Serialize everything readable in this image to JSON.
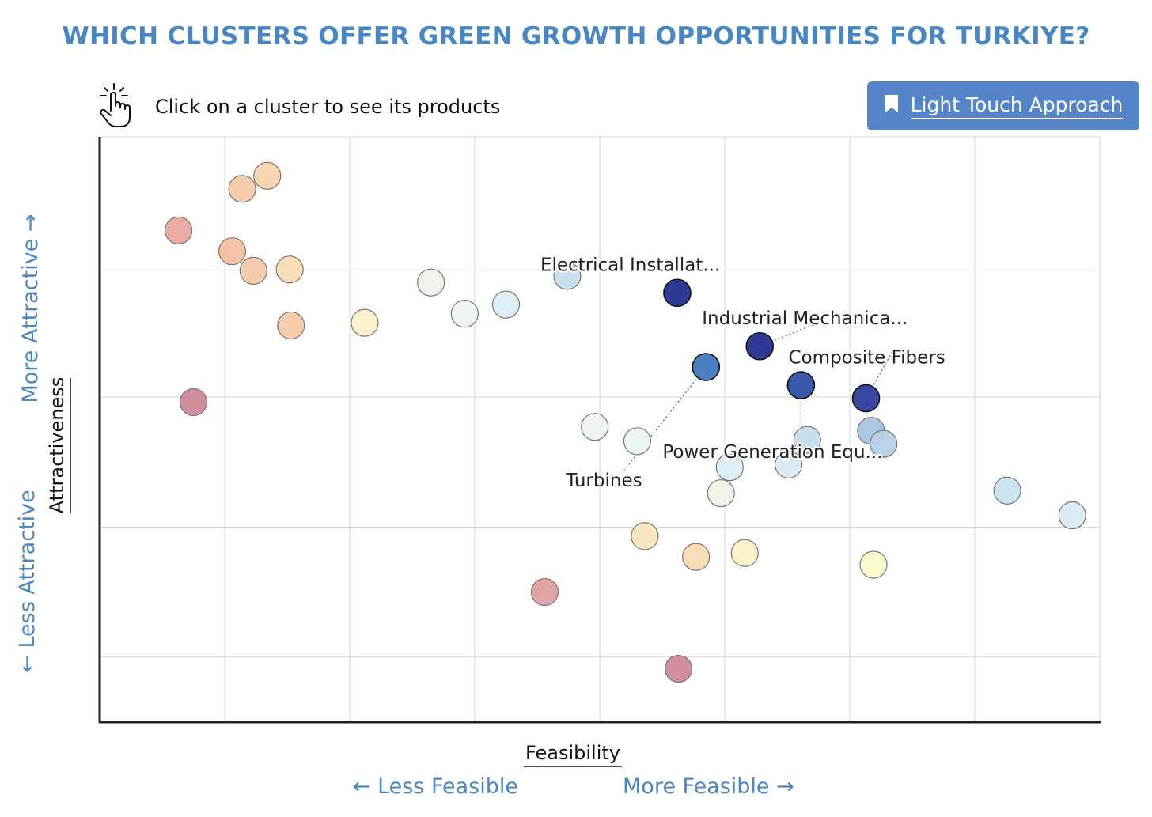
{
  "title": "WHICH CLUSTERS OFFER GREEN GROWTH OPPORTUNITIES FOR TURKIYE?",
  "hint": {
    "icon": "pointer-hand-click-icon",
    "text": "Click on a cluster to see its products"
  },
  "button": {
    "icon": "bookmark-icon",
    "label": "Light Touch Approach",
    "color": "#5585c8"
  },
  "chart_data": {
    "type": "scatter",
    "title": "WHICH CLUSTERS OFFER GREEN GROWTH OPPORTUNITIES FOR TURKIYE?",
    "xlabel": "Feasibility",
    "ylabel": "Attractiveness",
    "x_low_label": "← Less Feasible",
    "x_high_label": "More Feasible →",
    "y_low_label": "← Less Attractive",
    "y_high_label": "More Attractive →",
    "xlim": [
      0,
      8
    ],
    "ylim": [
      -0.5,
      4
    ],
    "grid": true,
    "points": [
      {
        "x": 1.34,
        "y": 3.7,
        "color": "#f6d3ac"
      },
      {
        "x": 1.14,
        "y": 3.6,
        "color": "#f5c8a6"
      },
      {
        "x": 0.63,
        "y": 3.28,
        "color": "#eaa69e"
      },
      {
        "x": 1.06,
        "y": 3.12,
        "color": "#f3bf9f"
      },
      {
        "x": 1.23,
        "y": 2.97,
        "color": "#f5c9a8"
      },
      {
        "x": 1.52,
        "y": 2.98,
        "color": "#f8dcb2"
      },
      {
        "x": 1.53,
        "y": 2.55,
        "color": "#f5cba7"
      },
      {
        "x": 2.12,
        "y": 2.57,
        "color": "#fcf0cc"
      },
      {
        "x": 2.65,
        "y": 2.88,
        "color": "#eef4ea"
      },
      {
        "x": 2.92,
        "y": 2.64,
        "color": "#eef4f0"
      },
      {
        "x": 3.25,
        "y": 2.71,
        "color": "#dceef4"
      },
      {
        "x": 3.74,
        "y": 2.93,
        "color": "#c4dcec"
      },
      {
        "x": 4.62,
        "y": 2.8,
        "color": "#2e3a94",
        "label": "Electrical Installat..."
      },
      {
        "x": 5.28,
        "y": 2.39,
        "color": "#2e3a94",
        "label": "Industrial Mechanica..."
      },
      {
        "x": 4.85,
        "y": 2.23,
        "color": "#4a80c0",
        "label": "Turbines"
      },
      {
        "x": 5.61,
        "y": 2.09,
        "color": "#3a58a8",
        "label": "Power Generation Equ..."
      },
      {
        "x": 6.13,
        "y": 1.99,
        "color": "#3a46a0",
        "label": "Composite Fibers"
      },
      {
        "x": 0.75,
        "y": 1.96,
        "color": "#d08898"
      },
      {
        "x": 3.96,
        "y": 1.77,
        "color": "#eef4ee"
      },
      {
        "x": 4.3,
        "y": 1.66,
        "color": "#eaf4f0"
      },
      {
        "x": 5.66,
        "y": 1.67,
        "color": "#c4dcec"
      },
      {
        "x": 6.17,
        "y": 1.74,
        "color": "#a8c4e0"
      },
      {
        "x": 6.27,
        "y": 1.64,
        "color": "#b8d0e8"
      },
      {
        "x": 5.04,
        "y": 1.46,
        "color": "#dceef4"
      },
      {
        "x": 5.51,
        "y": 1.48,
        "color": "#d8eaf4"
      },
      {
        "x": 4.97,
        "y": 1.26,
        "color": "#f0f4e6"
      },
      {
        "x": 7.26,
        "y": 1.28,
        "color": "#c8e0ee"
      },
      {
        "x": 7.78,
        "y": 1.09,
        "color": "#d8ecf4"
      },
      {
        "x": 4.36,
        "y": 0.93,
        "color": "#fae6bc"
      },
      {
        "x": 4.77,
        "y": 0.77,
        "color": "#f8dcb4"
      },
      {
        "x": 5.16,
        "y": 0.8,
        "color": "#fcf0c8"
      },
      {
        "x": 6.19,
        "y": 0.71,
        "color": "#fefacc"
      },
      {
        "x": 3.56,
        "y": 0.5,
        "color": "#e0a0a0"
      },
      {
        "x": 4.63,
        "y": -0.09,
        "color": "#d08898"
      }
    ]
  }
}
